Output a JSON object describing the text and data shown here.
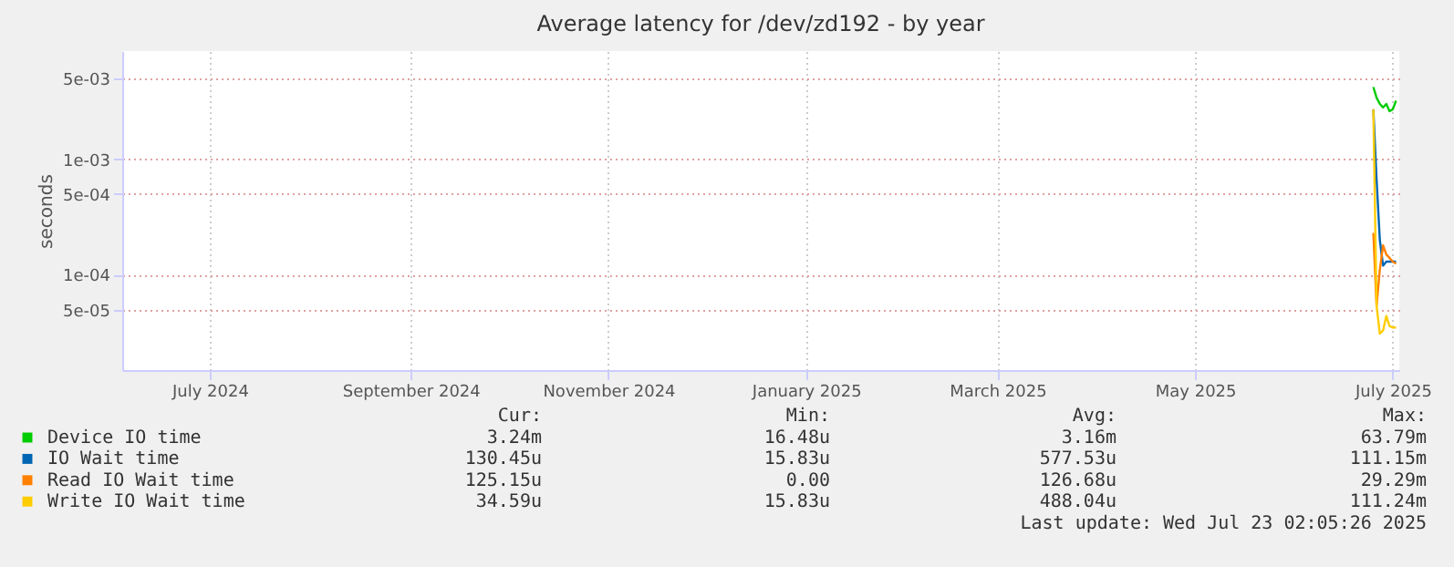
{
  "chart_data": {
    "type": "line",
    "title": "Average latency for /dev/zd192 - by year",
    "ylabel": "seconds",
    "x": [
      "2025-07-10",
      "2025-07-11",
      "2025-07-12",
      "2025-07-13",
      "2025-07-14",
      "2025-07-15",
      "2025-07-16",
      "2025-07-17"
    ],
    "series": [
      {
        "name": "Device IO time",
        "color": "#00cc00",
        "values": [
          0.0042,
          0.0034,
          0.003,
          0.0028,
          0.003,
          0.0026,
          0.0027,
          0.0032
        ]
      },
      {
        "name": "IO Wait time",
        "color": "#0066b3",
        "values": [
          0.0027,
          0.00067,
          0.0002,
          0.00012,
          0.00013,
          0.00013,
          0.00013,
          0.00013
        ]
      },
      {
        "name": "Read IO Wait time",
        "color": "#ff8000",
        "values": [
          0.00023,
          5.4e-05,
          0.00011,
          0.00018,
          0.00015,
          0.00014,
          0.00013,
          0.000125
        ]
      },
      {
        "name": "Write IO Wait time",
        "color": "#ffcc00",
        "values": [
          0.0027,
          5.4e-05,
          3.1e-05,
          3.3e-05,
          4.4e-05,
          3.6e-05,
          3.5e-05,
          3.5e-05
        ]
      }
    ],
    "log": "y",
    "ylim": [
      1.5e-05,
      0.0086
    ],
    "yticks": [
      {
        "value": 5e-05,
        "label": "5e-05"
      },
      {
        "value": 0.0001,
        "label": "1e-04"
      },
      {
        "value": 0.0005,
        "label": "5e-04"
      },
      {
        "value": 0.001,
        "label": "1e-03"
      },
      {
        "value": 0.005,
        "label": "5e-03"
      }
    ],
    "xlim": [
      "2024-06-19",
      "2025-07-18"
    ],
    "xticks": [
      {
        "value": "2024-07-16",
        "label": "July 2024"
      },
      {
        "value": "2024-09-16",
        "label": "September 2024"
      },
      {
        "value": "2024-11-16",
        "label": "November 2024"
      },
      {
        "value": "2025-01-16",
        "label": "January 2025"
      },
      {
        "value": "2025-03-16",
        "label": "March 2025"
      },
      {
        "value": "2025-05-16",
        "label": "May 2025"
      },
      {
        "value": "2025-07-16",
        "label": "July 2025"
      }
    ],
    "grid": true,
    "legend": "bottom",
    "marker": "none",
    "line_style": "solid",
    "annotations": [
      "Cur:",
      "Min:",
      "Avg:",
      "Max:",
      "3.24m",
      "16.48u",
      "3.16m",
      "63.79m",
      "130.45u",
      "15.83u",
      "577.53u",
      "111.15m",
      "125.15u",
      "0.00",
      "126.68u",
      "29.29m",
      "34.59u",
      "15.83u",
      "488.04u",
      "111.24m",
      "Last update: Wed Jul 23 02:05:26 2025"
    ]
  }
}
